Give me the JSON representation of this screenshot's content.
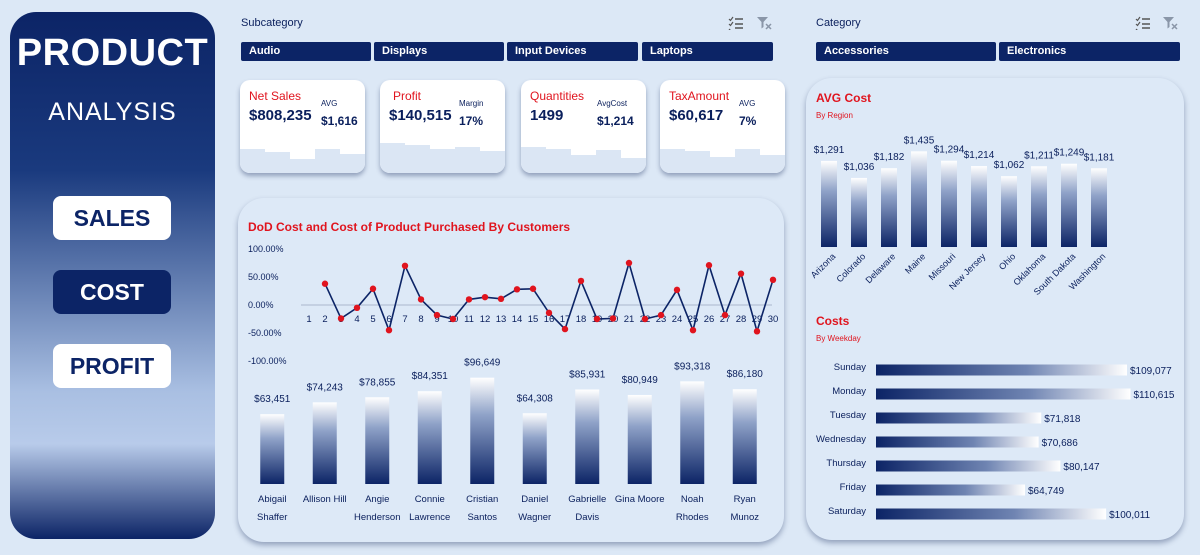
{
  "sidebar": {
    "title": "PRODUCT",
    "subtitle": "ANALYSIS",
    "nav": {
      "sales": "SALES",
      "cost": "COST",
      "profit": "PROFIT"
    }
  },
  "subcategory": {
    "title": "Subcategory",
    "items": [
      "Audio",
      "Displays",
      "Input Devices",
      "Laptops"
    ]
  },
  "category": {
    "title": "Category",
    "items": [
      "Accessories",
      "Electronics"
    ]
  },
  "kpis": {
    "net_sales": {
      "label": "Net Sales",
      "value": "$808,235",
      "sub_label": "AVG",
      "sub_value": "$1,616"
    },
    "profit": {
      "label": "Profit",
      "value": "$140,515",
      "sub_label": "Margin",
      "sub_value": "17%"
    },
    "quantities": {
      "label": "Quantities",
      "value": "1499",
      "sub_label": "AvgCost",
      "sub_value": "$1,214"
    },
    "tax": {
      "label": "TaxAmount",
      "value": "$60,617",
      "sub_label": "AVG",
      "sub_value": "7%"
    }
  },
  "colors": {
    "navy": "#0c2466",
    "red": "#e0141e",
    "bg": "#dce8f6"
  },
  "chart_data": [
    {
      "id": "dod",
      "type": "line",
      "title": "DoD Cost and Cost of Product Purchased By Customers",
      "x": [
        1,
        2,
        3,
        4,
        5,
        6,
        7,
        8,
        9,
        10,
        11,
        12,
        13,
        14,
        15,
        16,
        17,
        18,
        19,
        20,
        21,
        22,
        23,
        24,
        25,
        26,
        27,
        28,
        29,
        30
      ],
      "values": [
        null,
        38,
        -24,
        -5,
        29,
        -45,
        70,
        10,
        -18,
        -25,
        10,
        14,
        11,
        28,
        29,
        -14,
        -43,
        43,
        -25,
        -24,
        75,
        -25,
        -18,
        27,
        -45,
        71,
        -18,
        56,
        -47,
        45
      ],
      "ylim": [
        -100,
        100
      ],
      "yticks": [
        "100.00%",
        "50.00%",
        "0.00%",
        "-50.00%",
        "-100.00%"
      ]
    },
    {
      "id": "customers",
      "type": "bar",
      "categories": [
        [
          "Abigail",
          "Shaffer"
        ],
        [
          "Allison Hill"
        ],
        [
          "Angie",
          "Henderson"
        ],
        [
          "Connie",
          "Lawrence"
        ],
        [
          "Cristian",
          "Santos"
        ],
        [
          "Daniel",
          "Wagner"
        ],
        [
          "Gabrielle",
          "Davis"
        ],
        [
          "Gina Moore"
        ],
        [
          "Noah",
          "Rhodes"
        ],
        [
          "Ryan",
          "Munoz"
        ]
      ],
      "values": [
        63451,
        74243,
        78855,
        84351,
        96649,
        64308,
        85931,
        80949,
        93318,
        86180
      ],
      "labels": [
        "$63,451",
        "$74,243",
        "$78,855",
        "$84,351",
        "$96,649",
        "$64,308",
        "$85,931",
        "$80,949",
        "$93,318",
        "$86,180"
      ]
    },
    {
      "id": "region",
      "type": "bar",
      "title": "AVG Cost",
      "subtitle": "By Region",
      "categories": [
        "Arizona",
        "Colorado",
        "Delaware",
        "Maine",
        "Missouri",
        "New Jersey",
        "Ohio",
        "Oklahoma",
        "South Dakota",
        "Washington"
      ],
      "values": [
        1291,
        1036,
        1182,
        1435,
        1294,
        1214,
        1062,
        1211,
        1249,
        1181
      ],
      "labels": [
        "$1,291",
        "$1,036",
        "$1,182",
        "$1,435",
        "$1,294",
        "$1,214",
        "$1,062",
        "$1,211",
        "$1,249",
        "$1,181"
      ]
    },
    {
      "id": "weekday",
      "type": "bar",
      "orientation": "horizontal",
      "title": "Costs",
      "subtitle": "By Weekday",
      "categories": [
        "Sunday",
        "Monday",
        "Tuesday",
        "Wednesday",
        "Thursday",
        "Friday",
        "Saturday"
      ],
      "values": [
        109077,
        110615,
        71818,
        70686,
        80147,
        64749,
        100011
      ],
      "labels": [
        "$109,077",
        "$110,615",
        "$71,818",
        "$70,686",
        "$80,147",
        "$64,749",
        "$100,011"
      ]
    }
  ]
}
